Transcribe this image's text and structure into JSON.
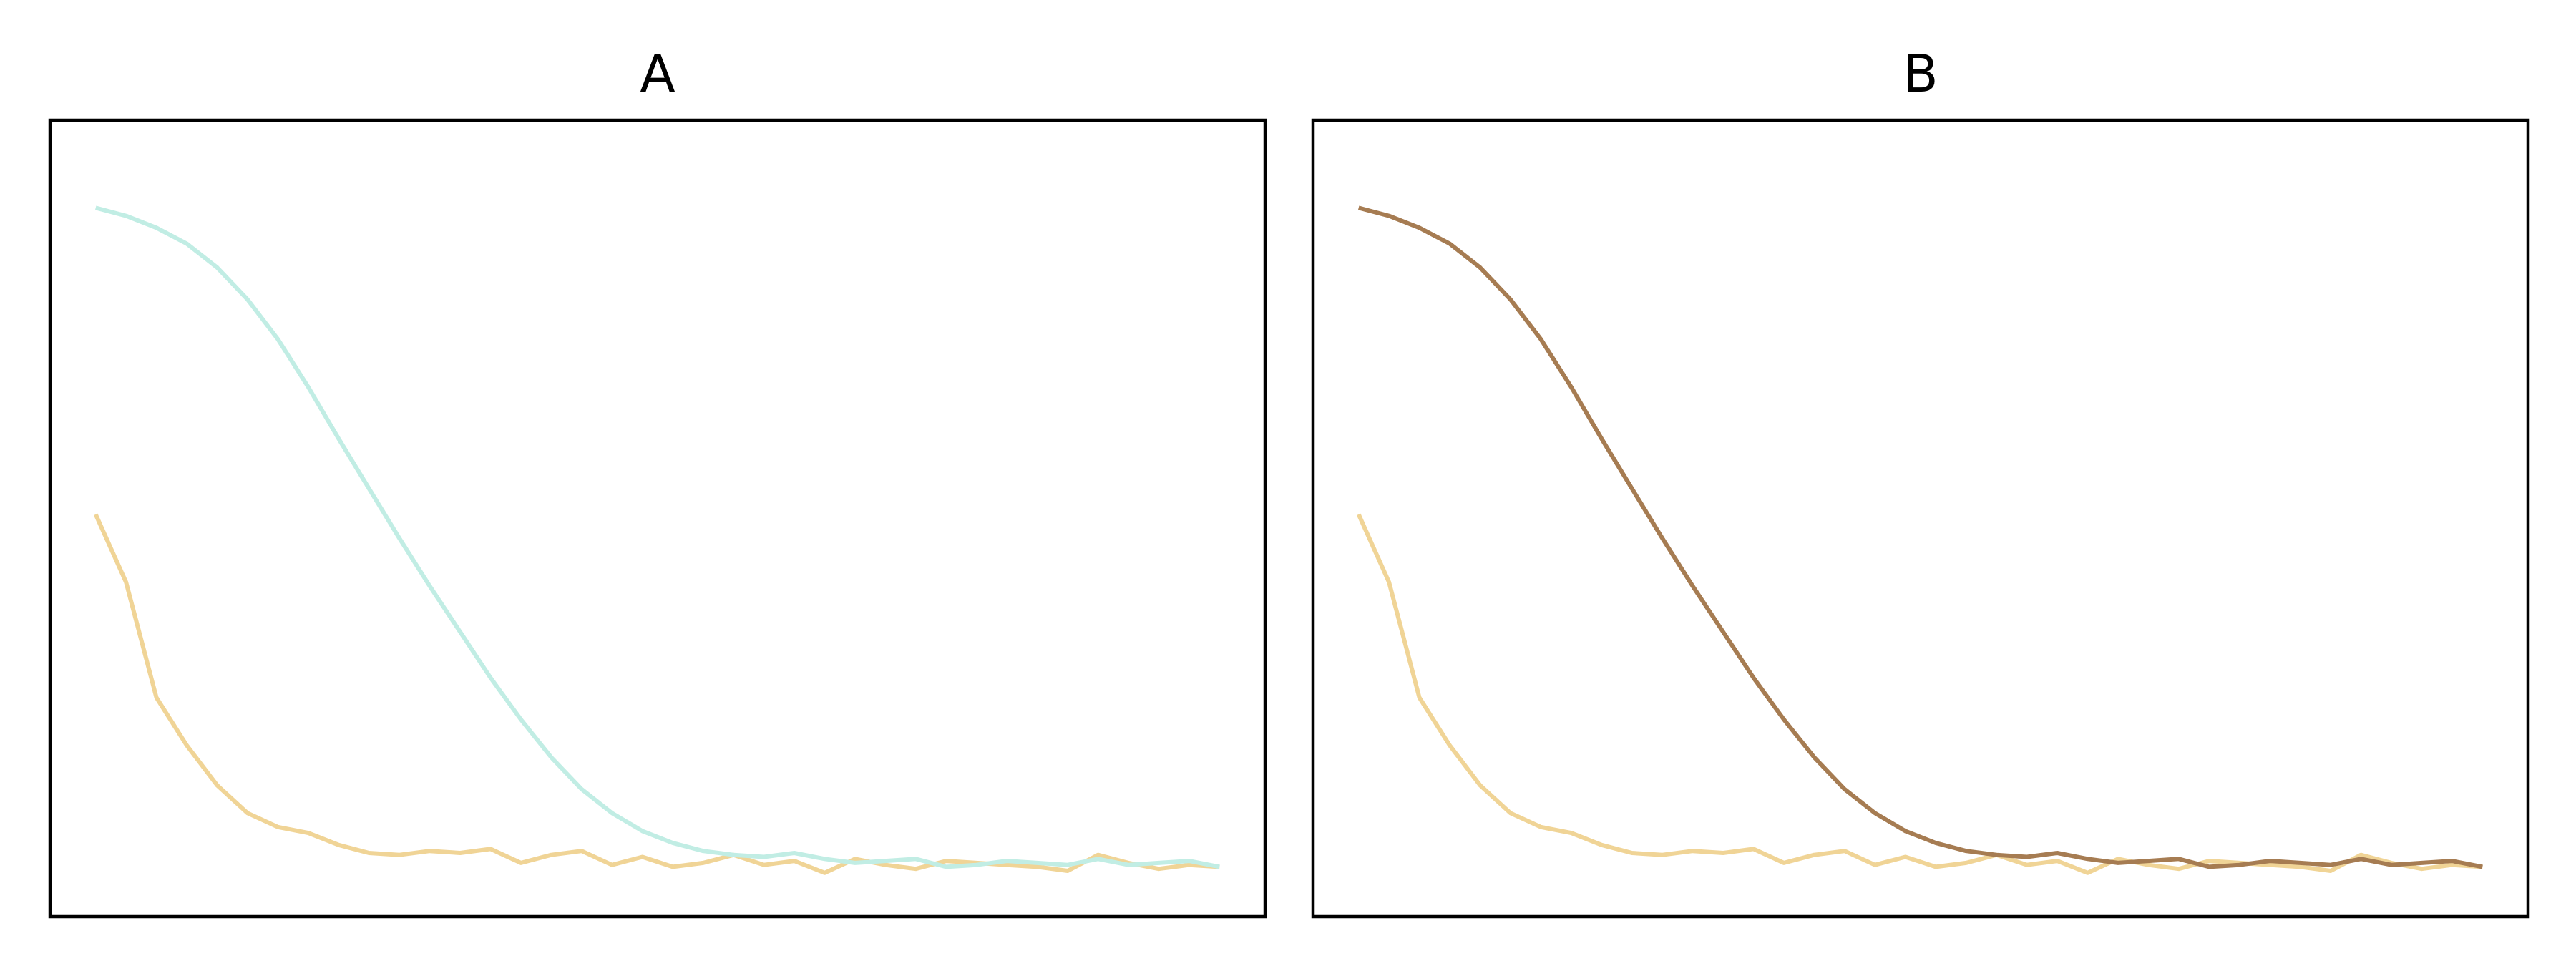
{
  "chart_data": [
    {
      "type": "line",
      "title": "A",
      "xaxis_visible": false,
      "yaxis_visible": false,
      "xlim": [
        0,
        40
      ],
      "ylim": [
        0,
        40
      ],
      "grid": false,
      "series": [
        {
          "color": "#f0d496",
          "x": [
            1.5,
            2.5,
            3.5,
            4.5,
            5.5,
            6.5,
            7.5,
            8.5,
            9.5,
            10.5,
            11.5,
            12.5,
            13.5,
            14.5,
            15.5,
            16.5,
            17.5,
            18.5,
            19.5,
            20.5,
            21.5,
            22.5,
            23.5,
            24.5,
            25.5,
            26.5,
            27.5,
            28.5,
            29.5,
            30.5,
            31.5,
            32.5,
            33.5,
            34.5,
            35.5,
            36.5,
            37.5,
            38.5
          ],
          "y": [
            20.2,
            16.8,
            11.0,
            8.6,
            6.6,
            5.2,
            4.5,
            4.2,
            3.6,
            3.2,
            3.1,
            3.3,
            3.2,
            3.4,
            2.7,
            3.1,
            3.3,
            2.6,
            3.0,
            2.5,
            2.7,
            3.1,
            2.6,
            2.8,
            2.2,
            2.9,
            2.6,
            2.4,
            2.8,
            2.7,
            2.6,
            2.5,
            2.3,
            3.1,
            2.7,
            2.4,
            2.6,
            2.5
          ]
        },
        {
          "color": "#c1ede4",
          "x": [
            1.5,
            2.5,
            3.5,
            4.5,
            5.5,
            6.5,
            7.5,
            8.5,
            9.5,
            10.5,
            11.5,
            12.5,
            13.5,
            14.5,
            15.5,
            16.5,
            17.5,
            18.5,
            19.5,
            20.5,
            21.5,
            22.5,
            23.5,
            24.5,
            25.5,
            26.5,
            27.5,
            28.5,
            29.5,
            30.5,
            31.5,
            32.5,
            33.5,
            34.5,
            35.5,
            36.5,
            37.5,
            38.5
          ],
          "y": [
            35.6,
            35.2,
            34.6,
            33.8,
            32.6,
            31.0,
            29.0,
            26.6,
            24.0,
            21.5,
            19.0,
            16.6,
            14.3,
            12.0,
            9.9,
            8.0,
            6.4,
            5.2,
            4.3,
            3.7,
            3.3,
            3.1,
            3.0,
            3.2,
            2.9,
            2.7,
            2.8,
            2.9,
            2.5,
            2.6,
            2.8,
            2.7,
            2.6,
            2.9,
            2.6,
            2.7,
            2.8,
            2.5
          ]
        }
      ]
    },
    {
      "type": "line",
      "title": "B",
      "xaxis_visible": false,
      "yaxis_visible": false,
      "xlim": [
        0,
        40
      ],
      "ylim": [
        0,
        40
      ],
      "grid": false,
      "series": [
        {
          "color": "#f0d496",
          "x": [
            1.5,
            2.5,
            3.5,
            4.5,
            5.5,
            6.5,
            7.5,
            8.5,
            9.5,
            10.5,
            11.5,
            12.5,
            13.5,
            14.5,
            15.5,
            16.5,
            17.5,
            18.5,
            19.5,
            20.5,
            21.5,
            22.5,
            23.5,
            24.5,
            25.5,
            26.5,
            27.5,
            28.5,
            29.5,
            30.5,
            31.5,
            32.5,
            33.5,
            34.5,
            35.5,
            36.5,
            37.5,
            38.5
          ],
          "y": [
            20.2,
            16.8,
            11.0,
            8.6,
            6.6,
            5.2,
            4.5,
            4.2,
            3.6,
            3.2,
            3.1,
            3.3,
            3.2,
            3.4,
            2.7,
            3.1,
            3.3,
            2.6,
            3.0,
            2.5,
            2.7,
            3.1,
            2.6,
            2.8,
            2.2,
            2.9,
            2.6,
            2.4,
            2.8,
            2.7,
            2.6,
            2.5,
            2.3,
            3.1,
            2.7,
            2.4,
            2.6,
            2.5
          ]
        },
        {
          "color": "#a67c52",
          "x": [
            1.5,
            2.5,
            3.5,
            4.5,
            5.5,
            6.5,
            7.5,
            8.5,
            9.5,
            10.5,
            11.5,
            12.5,
            13.5,
            14.5,
            15.5,
            16.5,
            17.5,
            18.5,
            19.5,
            20.5,
            21.5,
            22.5,
            23.5,
            24.5,
            25.5,
            26.5,
            27.5,
            28.5,
            29.5,
            30.5,
            31.5,
            32.5,
            33.5,
            34.5,
            35.5,
            36.5,
            37.5,
            38.5
          ],
          "y": [
            35.6,
            35.2,
            34.6,
            33.8,
            32.6,
            31.0,
            29.0,
            26.6,
            24.0,
            21.5,
            19.0,
            16.6,
            14.3,
            12.0,
            9.9,
            8.0,
            6.4,
            5.2,
            4.3,
            3.7,
            3.3,
            3.1,
            3.0,
            3.2,
            2.9,
            2.7,
            2.8,
            2.9,
            2.5,
            2.6,
            2.8,
            2.7,
            2.6,
            2.9,
            2.6,
            2.7,
            2.8,
            2.5
          ]
        }
      ]
    }
  ]
}
